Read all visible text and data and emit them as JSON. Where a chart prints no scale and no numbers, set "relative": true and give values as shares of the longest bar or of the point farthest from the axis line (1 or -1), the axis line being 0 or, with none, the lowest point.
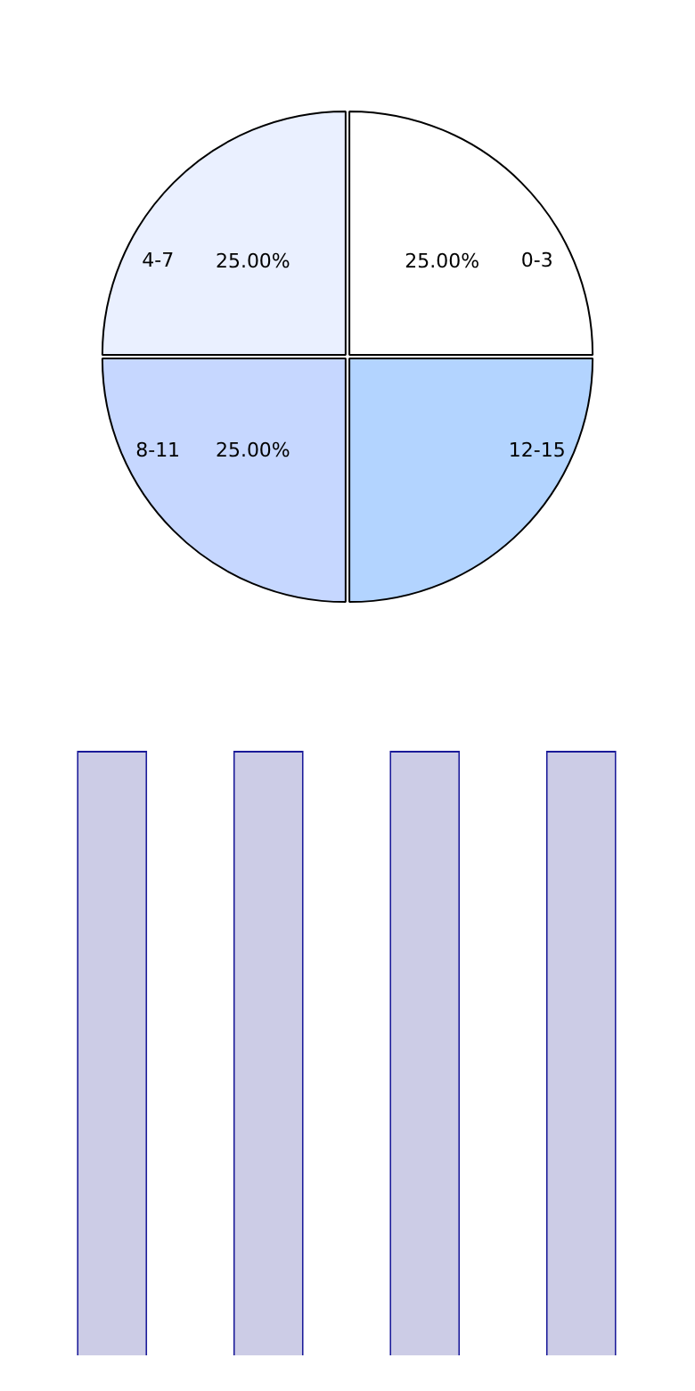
{
  "chart_data": [
    {
      "type": "pie",
      "categories": [
        "0-3",
        "4-7",
        "8-11",
        "12-15"
      ],
      "values": [
        25,
        25,
        25,
        25
      ],
      "colors": [
        "#ffffff",
        "#eaf0ff",
        "#c6d7ff",
        "#b3d4ff"
      ],
      "value_labels": [
        "25.00%",
        "25.00%",
        "25.00%",
        null
      ],
      "legend": false
    },
    {
      "type": "bar",
      "categories": [
        null,
        null,
        null,
        null
      ],
      "values": [
        1,
        1,
        1,
        1
      ],
      "color": "#cccce6",
      "relative": true,
      "legend": false
    }
  ]
}
